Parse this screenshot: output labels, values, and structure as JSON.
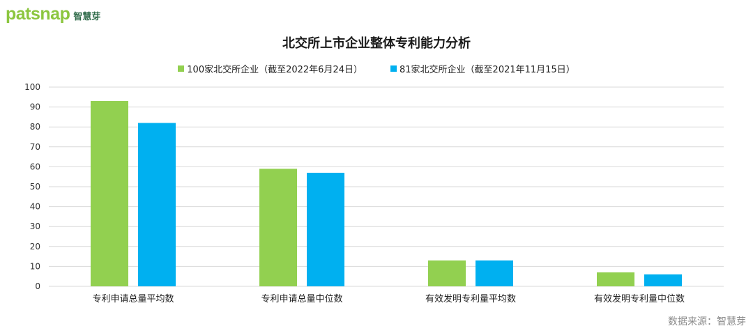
{
  "logo": {
    "word": "patsnap",
    "cn": "智慧芽"
  },
  "source": "数据来源：智慧芽",
  "colors": {
    "green": "#92d050",
    "blue": "#00b0f0",
    "grid": "#d9d9d9",
    "axis_text": "#333333"
  },
  "chart_data": {
    "type": "bar",
    "title": "北交所上市企业整体专利能力分析",
    "categories": [
      "专利申请总量平均数",
      "专利申请总量中位数",
      "有效发明专利量平均数",
      "有效发明专利量中位数"
    ],
    "series": [
      {
        "name": "100家北交所企业（截至2022年6月24日）",
        "values": [
          93,
          59,
          13,
          7
        ],
        "color": "#92d050"
      },
      {
        "name": "81家北交所企业（截至2021年11月15日）",
        "values": [
          82,
          57,
          13,
          6
        ],
        "color": "#00b0f0"
      }
    ],
    "ylim": [
      0,
      100
    ],
    "yticks": [
      0,
      10,
      20,
      30,
      40,
      50,
      60,
      70,
      80,
      90,
      100
    ],
    "grid": true,
    "legend_position": "top"
  }
}
